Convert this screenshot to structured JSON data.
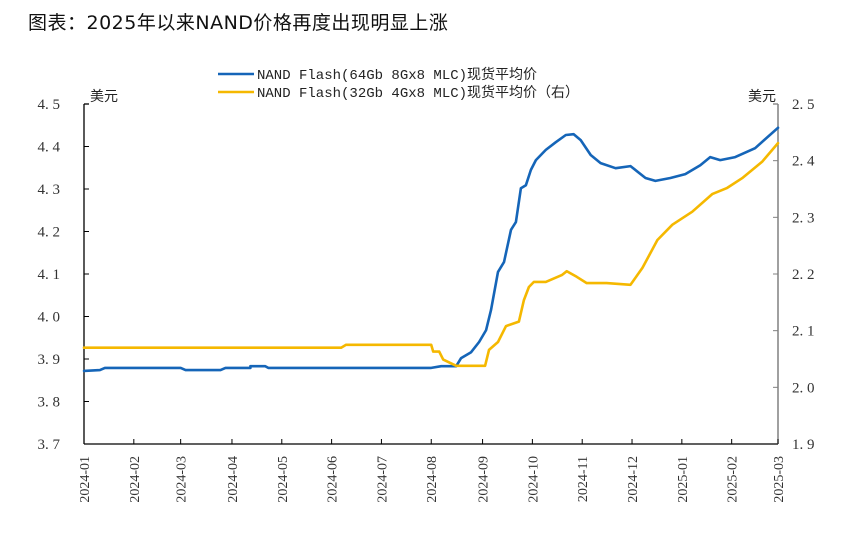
{
  "title": "图表：2025年以来NAND价格再度出现明显上涨",
  "chart_data": {
    "type": "line",
    "title": "图表：2025年以来NAND价格再度出现明显上涨",
    "xlabel": "",
    "ylabel_left": "美元",
    "ylabel_right": "美元",
    "x_ticks": [
      "2024-01",
      "2024-02",
      "2024-03",
      "2024-04",
      "2024-05",
      "2024-06",
      "2024-07",
      "2024-08",
      "2024-09",
      "2024-10",
      "2024-11",
      "2024-12",
      "2025-01",
      "2025-02",
      "2025-03"
    ],
    "ylim_left": [
      3.7,
      4.5
    ],
    "y_ticks_left": [
      "3.7",
      "3.8",
      "3.9",
      "4.0",
      "4.1",
      "4.2",
      "4.3",
      "4.4",
      "4.5"
    ],
    "ylim_right": [
      1.9,
      2.5
    ],
    "y_ticks_right": [
      "1.9",
      "2.0",
      "2.1",
      "2.2",
      "2.3",
      "2.4",
      "2.5"
    ],
    "grid": false,
    "legend_position": "top-center",
    "x_unit": "months since 2024-01",
    "series": [
      {
        "name": "NAND Flash(64Gb 8Gx8 MLC)现货平均价",
        "axis": "left",
        "color": "#1565b8",
        "x": [
          0,
          0.32,
          0.42,
          1.94,
          2.04,
          2.74,
          2.84,
          3.34,
          3.34,
          3.64,
          3.7,
          6.97,
          7.17,
          7.47,
          7.57,
          7.77,
          7.93,
          8.07,
          8.17,
          8.31,
          8.43,
          8.57,
          8.67,
          8.77,
          8.87,
          8.97,
          9.07,
          9.27,
          9.47,
          9.67,
          9.83,
          9.97,
          10.17,
          10.37,
          10.67,
          10.97,
          11.27,
          11.47,
          11.77,
          12.07,
          12.37,
          12.57,
          12.77,
          13.07,
          13.47,
          13.93
        ],
        "values": [
          3.872,
          3.874,
          3.879,
          3.879,
          3.874,
          3.874,
          3.879,
          3.879,
          3.883,
          3.883,
          3.879,
          3.879,
          3.883,
          3.883,
          3.902,
          3.916,
          3.94,
          3.968,
          4.015,
          4.105,
          4.128,
          4.204,
          4.222,
          4.302,
          4.309,
          4.345,
          4.368,
          4.392,
          4.41,
          4.427,
          4.429,
          4.415,
          4.38,
          4.361,
          4.349,
          4.354,
          4.326,
          4.319,
          4.326,
          4.335,
          4.356,
          4.375,
          4.368,
          4.375,
          4.396,
          4.444
        ]
      },
      {
        "name": "NAND Flash(32Gb 4Gx8 MLC)现货平均价（右）",
        "axis": "right",
        "color": "#f5b800",
        "x": [
          0,
          5.16,
          5.26,
          6.97,
          7.01,
          7.13,
          7.21,
          7.47,
          8.05,
          8.13,
          8.31,
          8.47,
          8.73,
          8.83,
          8.93,
          9.03,
          9.27,
          9.59,
          9.69,
          9.89,
          10.09,
          10.49,
          10.97,
          11.21,
          11.51,
          11.81,
          12.21,
          12.61,
          12.91,
          13.21,
          13.61,
          13.93
        ],
        "values": [
          2.07,
          2.07,
          2.075,
          2.075,
          2.063,
          2.063,
          2.049,
          2.038,
          2.038,
          2.066,
          2.08,
          2.108,
          2.116,
          2.154,
          2.177,
          2.186,
          2.186,
          2.198,
          2.205,
          2.195,
          2.184,
          2.184,
          2.181,
          2.211,
          2.26,
          2.287,
          2.31,
          2.341,
          2.352,
          2.369,
          2.398,
          2.431
        ]
      }
    ]
  }
}
